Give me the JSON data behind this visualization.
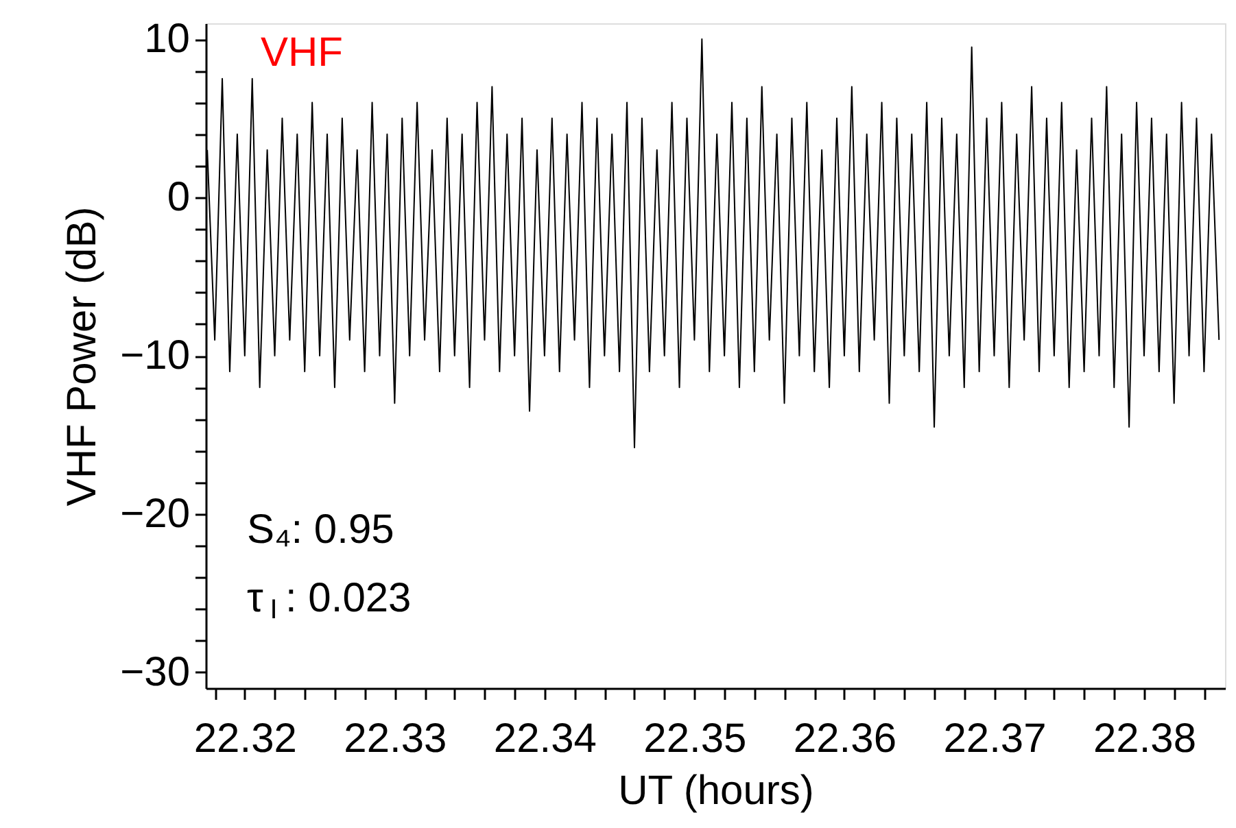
{
  "chart_data": {
    "type": "line",
    "xlabel": "UT (hours)",
    "ylabel": "VHF Power (dB)",
    "annotations": [
      "VHF",
      "S₄: 0.95",
      "τ$_{I}$: 0.023"
    ],
    "xlim": [
      22.3174,
      22.3854
    ],
    "ylim": [
      -31,
      11
    ],
    "xticks": [
      {
        "value": 22.318,
        "label": null
      },
      22.32,
      {
        "value": 22.322,
        "label": null
      },
      {
        "value": 22.324,
        "label": null
      },
      {
        "value": 22.326,
        "label": null
      },
      {
        "value": 22.328,
        "label": null
      },
      22.33,
      {
        "value": 22.332,
        "label": null
      },
      {
        "value": 22.334,
        "label": null
      },
      {
        "value": 22.336,
        "label": null
      },
      {
        "value": 22.338,
        "label": null
      },
      22.34,
      {
        "value": 22.342,
        "label": null
      },
      {
        "value": 22.344,
        "label": null
      },
      {
        "value": 22.346,
        "label": null
      },
      {
        "value": 22.348,
        "label": null
      },
      22.35,
      {
        "value": 22.352,
        "label": null
      },
      {
        "value": 22.354,
        "label": null
      },
      {
        "value": 22.356,
        "label": null
      },
      {
        "value": 22.358,
        "label": null
      },
      22.36,
      {
        "value": 22.362,
        "label": null
      },
      {
        "value": 22.364,
        "label": null
      },
      {
        "value": 22.366,
        "label": null
      },
      {
        "value": 22.368,
        "label": null
      },
      22.37,
      {
        "value": 22.372,
        "label": null
      },
      {
        "value": 22.374,
        "label": null
      },
      {
        "value": 22.376,
        "label": null
      },
      {
        "value": 22.378,
        "label": null
      },
      22.38,
      {
        "value": 22.382,
        "label": null
      },
      {
        "value": 22.384,
        "label": null
      }
    ],
    "yticks": [
      -30,
      {
        "value": -28,
        "label": null
      },
      {
        "value": -26,
        "label": null
      },
      {
        "value": -24,
        "label": null
      },
      {
        "value": -22,
        "label": null
      },
      -20,
      {
        "value": -18,
        "label": null
      },
      {
        "value": -16,
        "label": null
      },
      {
        "value": -14,
        "label": null
      },
      {
        "value": -12,
        "label": null
      },
      -10,
      {
        "value": -8,
        "label": null
      },
      {
        "value": -6,
        "label": null
      },
      {
        "value": -4,
        "label": null
      },
      {
        "value": -2,
        "label": null
      },
      0,
      {
        "value": 2,
        "label": null
      },
      {
        "value": 4,
        "label": null
      },
      {
        "value": 6,
        "label": null
      },
      {
        "value": 8,
        "label": null
      },
      10
    ],
    "grid": false,
    "line_style": "solid",
    "series": [
      {
        "color": "#000000",
        "x": [
          22.3175,
          22.318,
          22.3185,
          22.319,
          22.3195,
          22.32,
          22.3205,
          22.321,
          22.3215,
          22.322,
          22.3225,
          22.323,
          22.3235,
          22.324,
          22.3245,
          22.325,
          22.3255,
          22.326,
          22.3265,
          22.327,
          22.3275,
          22.328,
          22.3285,
          22.329,
          22.3295,
          22.33,
          22.3305,
          22.331,
          22.3315,
          22.332,
          22.3325,
          22.333,
          22.3335,
          22.334,
          22.3345,
          22.335,
          22.3355,
          22.336,
          22.3365,
          22.337,
          22.3375,
          22.338,
          22.3385,
          22.339,
          22.3395,
          22.34,
          22.3405,
          22.341,
          22.3415,
          22.342,
          22.3425,
          22.343,
          22.3435,
          22.344,
          22.3445,
          22.345,
          22.3455,
          22.346,
          22.3465,
          22.347,
          22.3475,
          22.348,
          22.3485,
          22.349,
          22.3495,
          22.35,
          22.3505,
          22.351,
          22.3515,
          22.352,
          22.3525,
          22.353,
          22.3535,
          22.354,
          22.3545,
          22.355,
          22.3555,
          22.356,
          22.3565,
          22.357,
          22.3575,
          22.358,
          22.3585,
          22.359,
          22.3595,
          22.36,
          22.3605,
          22.361,
          22.3615,
          22.362,
          22.3625,
          22.363,
          22.3635,
          22.364,
          22.3645,
          22.365,
          22.3655,
          22.366,
          22.3665,
          22.367,
          22.3675,
          22.368,
          22.3685,
          22.369,
          22.3695,
          22.37,
          22.3705,
          22.371,
          22.3715,
          22.372,
          22.3725,
          22.373,
          22.3735,
          22.374,
          22.3745,
          22.375,
          22.3755,
          22.376,
          22.3765,
          22.377,
          22.3775,
          22.378,
          22.3785,
          22.379,
          22.3795,
          22.38,
          22.3805,
          22.381,
          22.3815,
          22.382,
          22.3825,
          22.383,
          22.3835,
          22.384,
          22.3845,
          22.385
        ],
        "values": [
          3,
          -9,
          7.5,
          -11,
          4,
          -10,
          7.5,
          -12,
          3,
          -10,
          5,
          -9,
          4,
          -11,
          6,
          -10,
          4,
          -12,
          5,
          -9,
          3,
          -11,
          6,
          -10,
          4,
          -13,
          5,
          -10,
          6,
          -9,
          3,
          -11,
          5,
          -10,
          4,
          -12,
          6,
          -9,
          7,
          -11,
          4,
          -10,
          5,
          -13.5,
          3,
          -10,
          5,
          -11,
          4,
          -9,
          6,
          -12,
          5,
          -10,
          4,
          -11,
          6,
          -15.8,
          5,
          -11,
          3,
          -10,
          6,
          -12,
          5,
          -9,
          10,
          -11,
          4,
          -10,
          6,
          -12,
          5,
          -11,
          7,
          -9,
          4,
          -13,
          5,
          -10,
          6,
          -11,
          3,
          -12,
          5,
          -10,
          7,
          -11,
          4,
          -9,
          6,
          -13,
          5,
          -10,
          4,
          -11,
          6,
          -14.5,
          5,
          -10,
          4,
          -12,
          9.5,
          -11,
          5,
          -10,
          6,
          -12,
          4,
          -9,
          7,
          -11,
          5,
          -10,
          6,
          -12,
          3,
          -11,
          5,
          -10,
          7,
          -12,
          4,
          -14.5,
          6,
          -10,
          5,
          -11,
          4,
          -13,
          6,
          -10,
          5,
          -11,
          4,
          -9
        ]
      }
    ]
  }
}
